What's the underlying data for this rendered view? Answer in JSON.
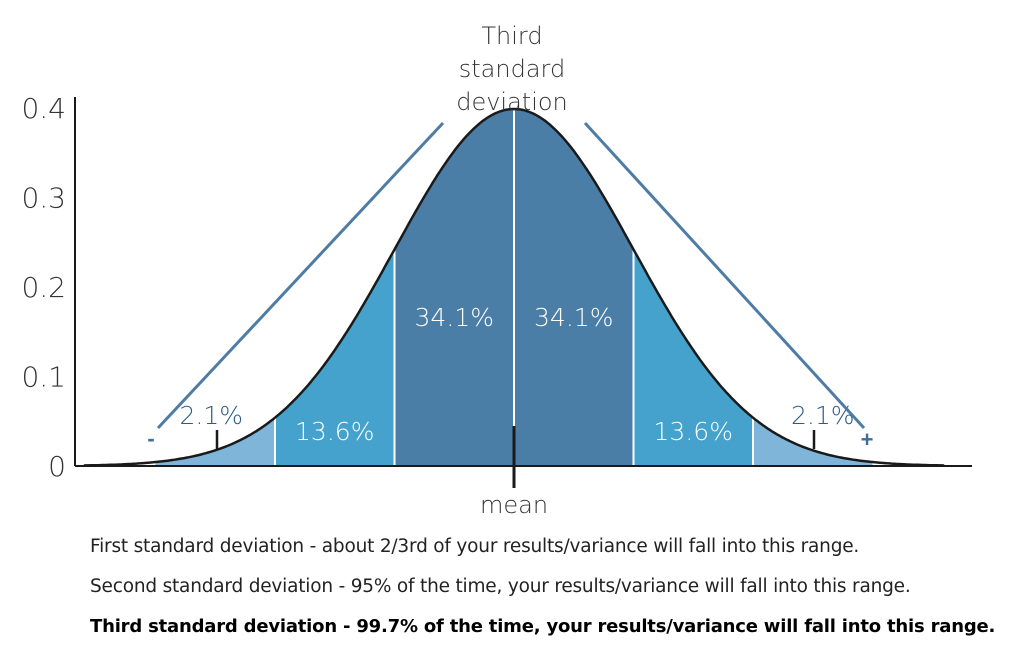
{
  "chart_data": {
    "type": "area",
    "title": "Third standard deviation",
    "title_lines": [
      "Third",
      "standard",
      "deviation"
    ],
    "y_ticks": [
      "0",
      "0.1",
      "0.2",
      "0.3",
      "0.4"
    ],
    "ylim": [
      0,
      0.4
    ],
    "xlim": [
      -3.6,
      3.6
    ],
    "x_marker_label": "mean",
    "mean": 0,
    "peak": 0.3989,
    "regions": [
      {
        "from": -3,
        "to": -2,
        "label": "2.1%",
        "color": "#7fb5d8"
      },
      {
        "from": -2,
        "to": -1,
        "label": "13.6%",
        "color": "#45a2cc"
      },
      {
        "from": -1,
        "to": 0,
        "label": "34.1%",
        "color": "#4a7ea7"
      },
      {
        "from": 0,
        "to": 1,
        "label": "34.1%",
        "color": "#4a7ea7"
      },
      {
        "from": 1,
        "to": 2,
        "label": "13.6%",
        "color": "#45a2cc"
      },
      {
        "from": 2,
        "to": 3,
        "label": "2.1%",
        "color": "#7fb5d8"
      }
    ],
    "bracket_signs": [
      "-",
      "+"
    ],
    "colors": {
      "curve": "#1a1a1a",
      "axis": "#1a1a1a",
      "bracket": "#4f7ca4"
    }
  },
  "notes": [
    "First standard deviation - about 2/3rd of your results/variance will fall into this range.",
    "Second standard deviation - 95% of the time, your results/variance will fall into this range.",
    "Third standard deviation - 99.7% of the time, your results/variance will fall into this range."
  ]
}
